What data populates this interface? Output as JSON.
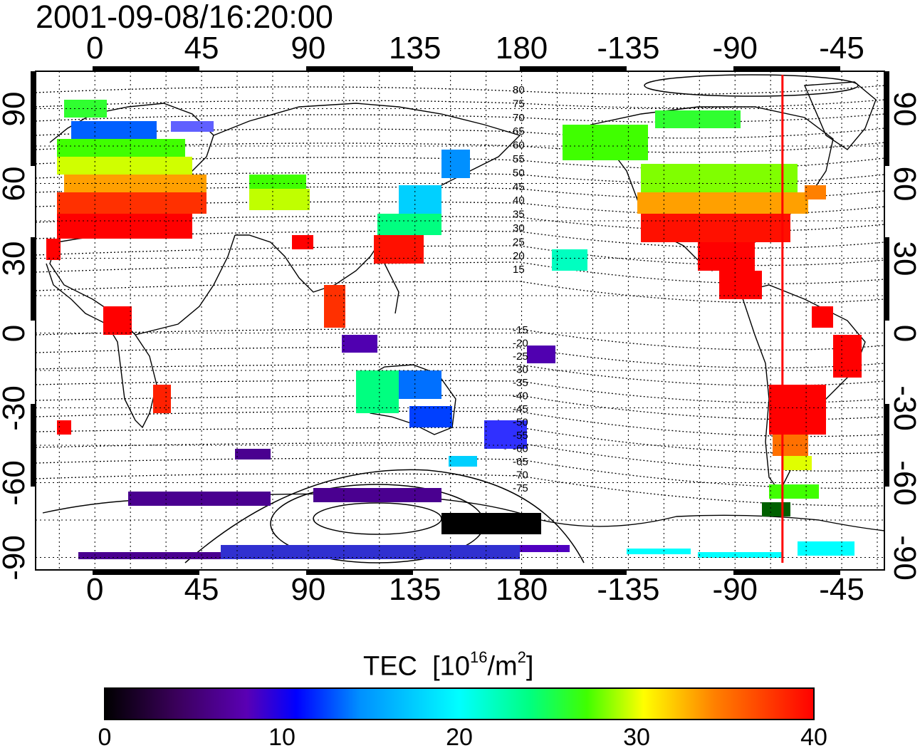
{
  "timestamp": "2001-09-08/16:20:00",
  "map": {
    "lon_ticks_top": [
      "0",
      "45",
      "90",
      "135",
      "180",
      "-135",
      "-90",
      "-45"
    ],
    "lon_ticks_bottom": [
      "0",
      "45",
      "90",
      "135",
      "180",
      "-135",
      "-90",
      "-45"
    ],
    "lon_values": [
      0,
      45,
      90,
      135,
      180,
      225,
      270,
      315
    ],
    "lat_ticks_left": [
      "90",
      "60",
      "30",
      "0",
      "-30",
      "-60",
      "-90"
    ],
    "lat_ticks_right": [
      "90",
      "60",
      "30",
      "0",
      "-30",
      "-60",
      "-90"
    ],
    "lat_values": [
      90,
      60,
      30,
      0,
      -30,
      -60,
      -90
    ],
    "lon_range": [
      -25,
      333
    ],
    "lat_range": [
      -95,
      105
    ],
    "meridian_line_lon": -70,
    "meridian_line_color": "#ff0000",
    "contour_labels_north": [
      "80",
      "75",
      "70",
      "65",
      "60",
      "55",
      "50",
      "45",
      "40",
      "35",
      "30",
      "25",
      "20",
      "15"
    ],
    "contour_labels_south": [
      "-15",
      "-20",
      "-25",
      "-30",
      "-35",
      "-40",
      "-45",
      "-50",
      "-55",
      "-60",
      "-65",
      "-70",
      "-75"
    ]
  },
  "colorbar": {
    "title": "TEC",
    "unit_prefix": "[10",
    "unit_exp": "16",
    "unit_mid": "/m",
    "unit_exp2": "2",
    "unit_suffix": "]",
    "ticks": [
      "0",
      "10",
      "20",
      "30",
      "40"
    ],
    "colors": [
      "#000000",
      "#3a005a",
      "#5a00b4",
      "#0000ff",
      "#0090ff",
      "#00ffff",
      "#00ff80",
      "#40ff00",
      "#ffff00",
      "#ff8000",
      "#ff0000"
    ]
  }
}
